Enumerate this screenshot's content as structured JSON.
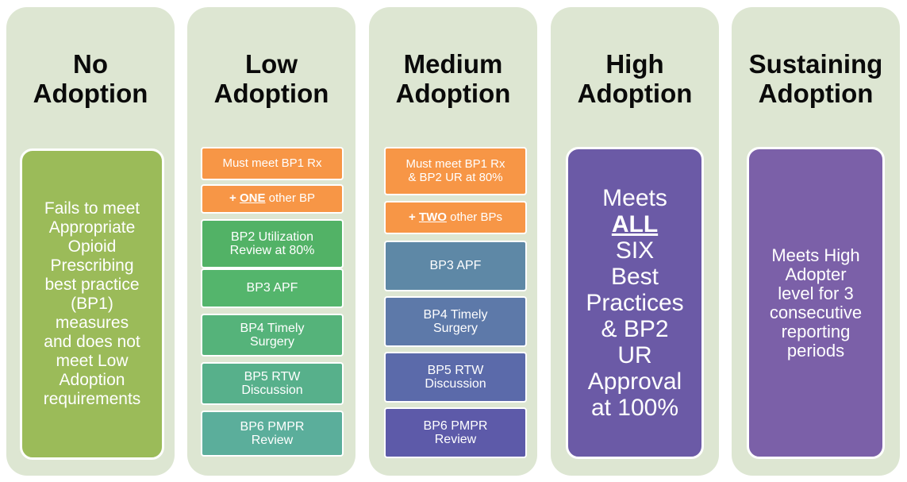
{
  "columns": [
    {
      "title1": "No",
      "title2": "Adoption",
      "box": {
        "lines": [
          "Fails to meet",
          "Appropriate",
          "Opioid",
          "Prescribing",
          "best practice",
          "(BP1)",
          "measures",
          "and does not",
          "meet Low",
          "Adoption",
          "requirements"
        ]
      }
    },
    {
      "title1": "Low",
      "title2": "Adoption",
      "items": [
        {
          "text": "Must meet BP1 Rx"
        },
        {
          "plus": "+ ",
          "emph": "ONE",
          "rest": " other BP"
        },
        {
          "l1": "BP2 Utilization",
          "l2": "Review at 80%"
        },
        {
          "text": "BP3 APF"
        },
        {
          "l1": "BP4 Timely",
          "l2": "Surgery"
        },
        {
          "l1": "BP5 RTW",
          "l2": "Discussion"
        },
        {
          "l1": "BP6 PMPR",
          "l2": "Review"
        }
      ]
    },
    {
      "title1": "Medium",
      "title2": "Adoption",
      "items": [
        {
          "l1": "Must meet BP1 Rx",
          "l2": "& BP2 UR at 80%"
        },
        {
          "plus": "+ ",
          "emph": "TWO",
          "rest": " other BPs"
        },
        {
          "text": "BP3 APF"
        },
        {
          "l1": "BP4 Timely",
          "l2": "Surgery"
        },
        {
          "l1": "BP5 RTW",
          "l2": "Discussion"
        },
        {
          "l1": "BP6 PMPR",
          "l2": "Review"
        }
      ]
    },
    {
      "title1": "High",
      "title2": "Adoption",
      "box": {
        "line1": "Meets",
        "emph": "ALL",
        "rest": " SIX",
        "lines": [
          "Best",
          "Practices",
          "& BP2",
          "UR",
          "Approval",
          "at 100%"
        ]
      }
    },
    {
      "title1": "Sustaining",
      "title2": "Adoption",
      "box": {
        "lines": [
          "Meets High",
          "Adopter",
          "level for 3",
          "consecutive",
          "reporting",
          "periods"
        ]
      }
    }
  ],
  "colors": {
    "panel": "#dde6d2",
    "green_box": "#9bbb59",
    "orange": "#f79646",
    "purple": "#7b60a8"
  }
}
